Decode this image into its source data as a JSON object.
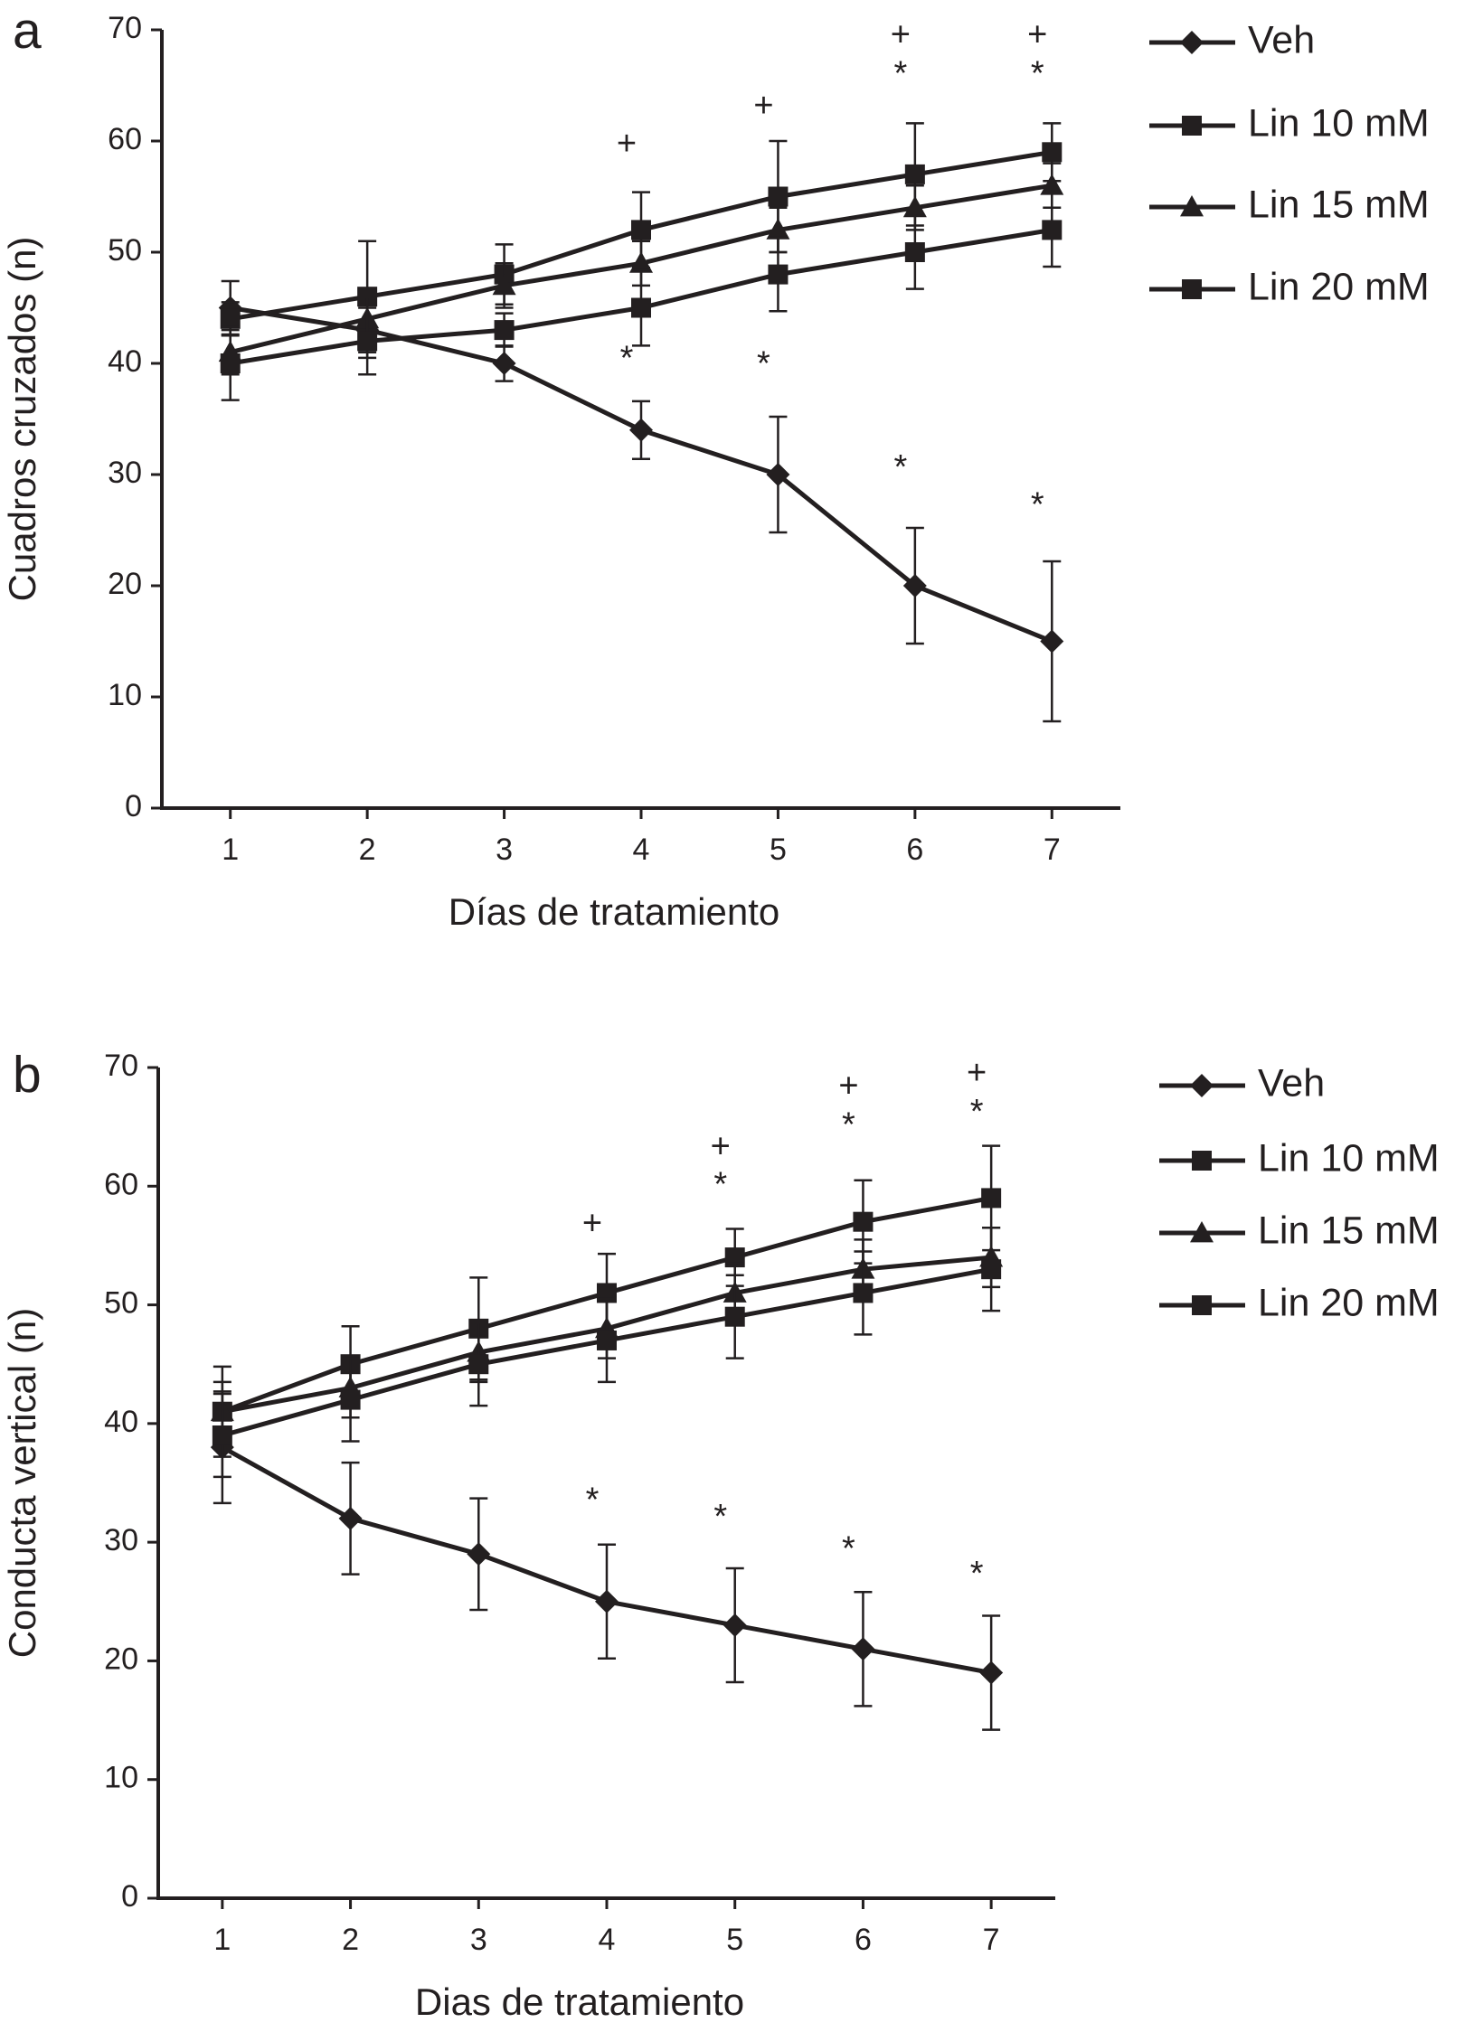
{
  "chart_data": [
    {
      "type": "line",
      "panel": "a",
      "xlabel": "Días de tratamiento",
      "ylabel": "Cuadros cruzados (n)",
      "x": [
        1,
        2,
        3,
        4,
        5,
        6,
        7
      ],
      "xlim": [
        0.5,
        7.5
      ],
      "xticks": [
        1,
        2,
        3,
        4,
        5,
        6,
        7
      ],
      "ylim": [
        0,
        70
      ],
      "yticks": [
        0,
        10,
        20,
        30,
        40,
        50,
        60,
        70
      ],
      "legend": "right",
      "series": [
        {
          "name": "Veh",
          "color": "#231f20",
          "marker": "diamond",
          "values": [
            45,
            43,
            40,
            34,
            30,
            20,
            15
          ],
          "errors": [
            2.4,
            2.5,
            1.6,
            2.6,
            5.2,
            5.2,
            7.2
          ]
        },
        {
          "name": "Lin 10 mM",
          "color": "#231f20",
          "marker": "square",
          "values": [
            44,
            46,
            48,
            52,
            55,
            57,
            59
          ],
          "errors": [
            1.5,
            5,
            2.7,
            3.4,
            5,
            4.6,
            2.6
          ]
        },
        {
          "name": "Lin 15 mM",
          "color": "#231f20",
          "marker": "triangle",
          "values": [
            41,
            44,
            47,
            49,
            52,
            54,
            56
          ],
          "errors": [
            2,
            2,
            2,
            2,
            2,
            2,
            2
          ]
        },
        {
          "name": "Lin 20 mM",
          "color": "#231f20",
          "marker": "square",
          "values": [
            40,
            42,
            43,
            45,
            48,
            50,
            52
          ],
          "errors": [
            3.3,
            3,
            1.5,
            3.4,
            3.3,
            3.3,
            3.3
          ]
        }
      ],
      "annotations": [
        {
          "text": "+",
          "x": 4,
          "y": 59.6
        },
        {
          "text": "+",
          "x": 5,
          "y": 63
        },
        {
          "text": "+",
          "x": 6,
          "y": 69.4
        },
        {
          "text": "*",
          "x": 6,
          "y": 65.9
        },
        {
          "text": "+",
          "x": 7,
          "y": 69.4
        },
        {
          "text": "*",
          "x": 7,
          "y": 65.9
        },
        {
          "text": "*",
          "x": 4,
          "y": 40.3
        },
        {
          "text": "*",
          "x": 5,
          "y": 39.8
        },
        {
          "text": "*",
          "x": 6,
          "y": 30.5
        },
        {
          "text": "*",
          "x": 7,
          "y": 27.1
        }
      ]
    },
    {
      "type": "line",
      "panel": "b",
      "xlabel": "Dias de tratamiento",
      "ylabel": "Conducta vertical (n)",
      "x": [
        1,
        2,
        3,
        4,
        5,
        6,
        7
      ],
      "xlim": [
        0.5,
        7.5
      ],
      "xticks": [
        1,
        2,
        3,
        4,
        5,
        6,
        7
      ],
      "ylim": [
        0,
        70
      ],
      "yticks": [
        0,
        10,
        20,
        30,
        40,
        50,
        60,
        70
      ],
      "legend": "right",
      "series": [
        {
          "name": "Veh",
          "color": "#231f20",
          "marker": "diamond",
          "values": [
            38,
            32,
            29,
            25,
            23,
            21,
            19
          ],
          "errors": [
            4.7,
            4.7,
            4.7,
            4.8,
            4.8,
            4.8,
            4.8
          ]
        },
        {
          "name": "Lin 10 mM",
          "color": "#231f20",
          "marker": "square",
          "values": [
            41,
            45,
            48,
            51,
            54,
            57,
            59
          ],
          "errors": [
            3.8,
            3.2,
            4.3,
            3.3,
            2.4,
            3.5,
            4.4
          ]
        },
        {
          "name": "Lin 15 mM",
          "color": "#231f20",
          "marker": "triangle",
          "values": [
            41,
            43,
            46,
            48,
            51,
            53,
            54
          ],
          "errors": [
            2.5,
            2.5,
            2.5,
            2.5,
            2.5,
            2.5,
            2.5
          ]
        },
        {
          "name": "Lin 20 mM",
          "color": "#231f20",
          "marker": "square",
          "values": [
            39,
            42,
            45,
            47,
            49,
            51,
            53
          ],
          "errors": [
            3.5,
            3.5,
            3.5,
            3.5,
            3.5,
            3.5,
            3.5
          ]
        }
      ],
      "annotations": [
        {
          "text": "+",
          "x": 4,
          "y": 56.7
        },
        {
          "text": "+",
          "x": 5,
          "y": 63.2
        },
        {
          "text": "*",
          "x": 5,
          "y": 60
        },
        {
          "text": "+",
          "x": 6,
          "y": 68.3
        },
        {
          "text": "*",
          "x": 6,
          "y": 65
        },
        {
          "text": "+",
          "x": 7,
          "y": 69.4
        },
        {
          "text": "*",
          "x": 7,
          "y": 66.1
        },
        {
          "text": "*",
          "x": 4,
          "y": 33.4
        },
        {
          "text": "*",
          "x": 5,
          "y": 32
        },
        {
          "text": "*",
          "x": 6,
          "y": 29.3
        },
        {
          "text": "*",
          "x": 7,
          "y": 27.2
        }
      ]
    }
  ]
}
